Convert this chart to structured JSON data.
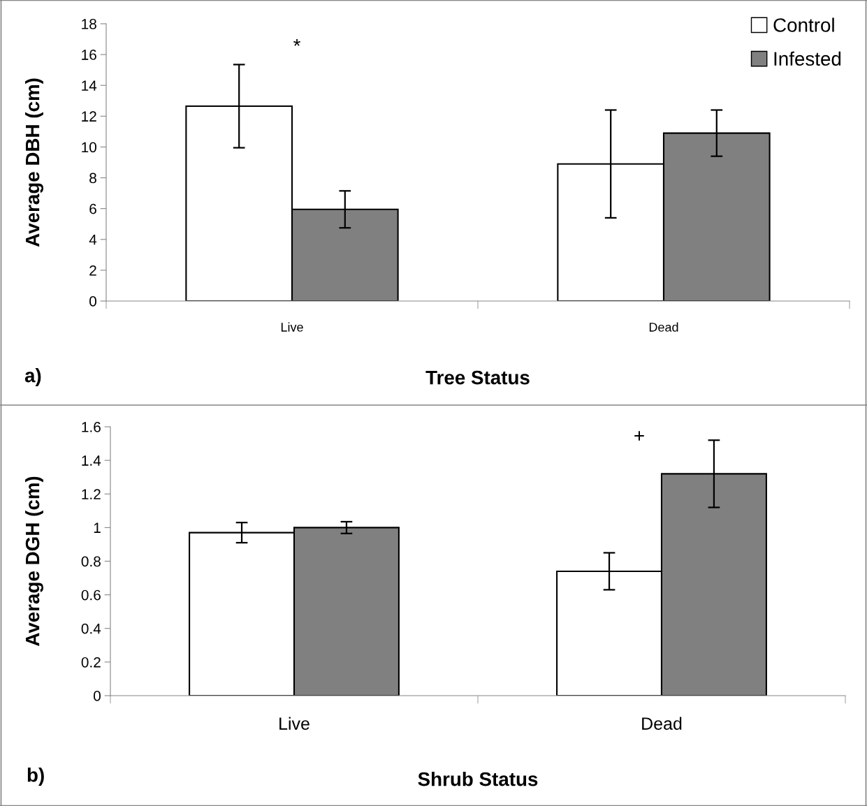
{
  "chart_data": [
    {
      "type": "bar",
      "ylabel": "Average DBH (cm)",
      "xlabel": "Tree Status",
      "categories": [
        "Live",
        "Dead"
      ],
      "series": [
        {
          "name": "Control",
          "color": "#ffffff",
          "values": [
            12.65,
            8.9
          ],
          "errors": [
            2.7,
            3.5
          ]
        },
        {
          "name": "Infested",
          "color": "#808080",
          "values": [
            5.95,
            10.9
          ],
          "errors": [
            1.2,
            1.5
          ]
        }
      ],
      "ylim": [
        0,
        18
      ],
      "yticks": [
        0,
        2,
        4,
        6,
        8,
        10,
        12,
        14,
        16,
        18
      ],
      "grid": false,
      "legend": "top right",
      "annotations": [
        "*",
        "a)"
      ]
    },
    {
      "type": "bar",
      "ylabel": "Average DGH (cm)",
      "xlabel": "Shrub Status",
      "categories": [
        "Live",
        "Dead"
      ],
      "series": [
        {
          "color": "#ffffff",
          "values": [
            0.97,
            0.74
          ],
          "errors": [
            0.06,
            0.11
          ]
        },
        {
          "color": "#808080",
          "values": [
            1.0,
            1.32
          ],
          "errors": [
            0.035,
            0.2
          ]
        }
      ],
      "ylim": [
        0,
        1.6
      ],
      "yticks": [
        0,
        0.2,
        0.4,
        0.6,
        0.8,
        1,
        1.2,
        1.4,
        1.6
      ],
      "grid": false,
      "legend": false,
      "annotations": [
        "+",
        "b)"
      ]
    }
  ]
}
